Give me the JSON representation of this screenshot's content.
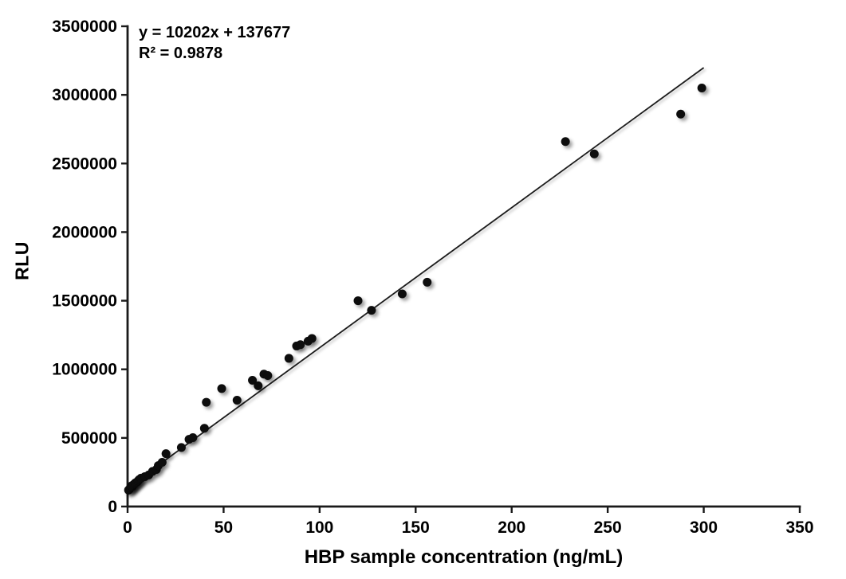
{
  "chart_data": {
    "type": "scatter",
    "title": "",
    "xlabel": "HBP sample concentration (ng/mL)",
    "ylabel": "RLU",
    "xlim": [
      0,
      350
    ],
    "ylim": [
      0,
      3500000
    ],
    "xticks": [
      0,
      50,
      100,
      150,
      200,
      250,
      300,
      350
    ],
    "yticks": [
      0,
      500000,
      1000000,
      1500000,
      2000000,
      2500000,
      3000000,
      3500000
    ],
    "grid": false,
    "legend": "none",
    "annotation": {
      "equation": "y = 10202x + 137677",
      "r_squared": "R² = 0.9878"
    },
    "trendline": {
      "slope": 10202,
      "intercept": 137677,
      "x_start": 0,
      "x_end": 300
    },
    "points": [
      [
        0.5,
        120000
      ],
      [
        1,
        126000
      ],
      [
        1.5,
        138000
      ],
      [
        2,
        150000
      ],
      [
        2.5,
        146000
      ],
      [
        3,
        158000
      ],
      [
        3.5,
        164000
      ],
      [
        4,
        172000
      ],
      [
        5,
        180000
      ],
      [
        5.5,
        188000
      ],
      [
        6,
        196000
      ],
      [
        7,
        207000
      ],
      [
        9,
        218000
      ],
      [
        11,
        230000
      ],
      [
        13,
        256000
      ],
      [
        15,
        270000
      ],
      [
        16,
        298000
      ],
      [
        18,
        322000
      ],
      [
        20,
        385000
      ],
      [
        28,
        430000
      ],
      [
        32,
        490000
      ],
      [
        34,
        502000
      ],
      [
        40,
        570000
      ],
      [
        41,
        760000
      ],
      [
        49,
        860000
      ],
      [
        57,
        775000
      ],
      [
        65,
        920000
      ],
      [
        68,
        880000
      ],
      [
        71,
        965000
      ],
      [
        73,
        955000
      ],
      [
        84,
        1080000
      ],
      [
        88,
        1170000
      ],
      [
        90,
        1180000
      ],
      [
        94,
        1205000
      ],
      [
        96,
        1225000
      ],
      [
        120,
        1500000
      ],
      [
        127,
        1430000
      ],
      [
        143,
        1550000
      ],
      [
        156,
        1635000
      ],
      [
        228,
        2660000
      ],
      [
        243,
        2570000
      ],
      [
        288,
        2860000
      ],
      [
        299,
        3050000
      ]
    ],
    "colors": {
      "background": "#ffffff",
      "marker": "#0a0a0a",
      "trendline": "#1a1a1a",
      "axis": "#1a1a1a",
      "text": "#000000"
    },
    "marker": {
      "shape": "circle",
      "radius_px": 5.5,
      "shadow": true
    }
  }
}
